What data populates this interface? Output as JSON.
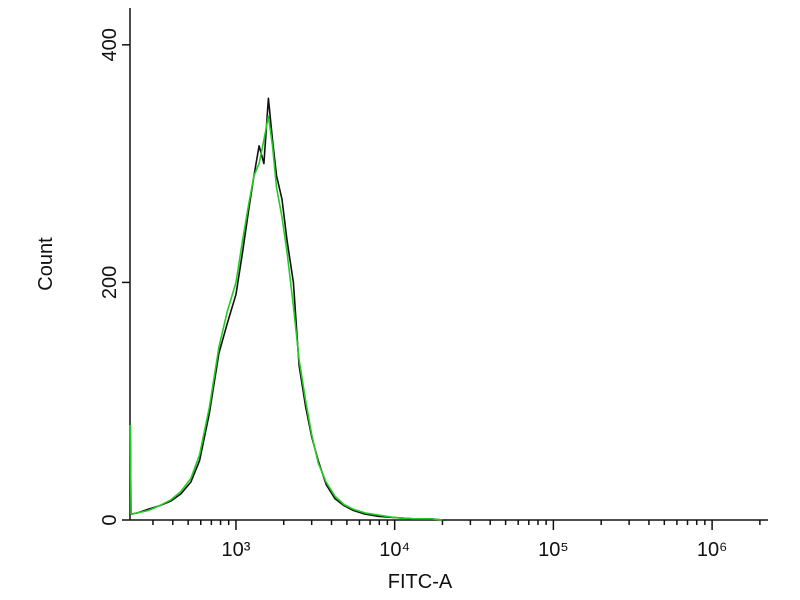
{
  "chart_data": {
    "type": "line",
    "x_label": "FITC-A",
    "y_label": "Count",
    "xscale": "log",
    "xlim": [
      215,
      2250000
    ],
    "ylim": [
      0,
      431
    ],
    "xticks": [
      {
        "value": 1000,
        "label": "10³"
      },
      {
        "value": 10000,
        "label": "10⁴"
      },
      {
        "value": 100000,
        "label": "10⁵"
      },
      {
        "value": 1000000,
        "label": "10⁶"
      }
    ],
    "xminorticks": [
      300,
      400,
      500,
      600,
      700,
      800,
      900,
      2000,
      3000,
      4000,
      5000,
      6000,
      7000,
      8000,
      9000,
      20000,
      30000,
      40000,
      50000,
      60000,
      70000,
      80000,
      90000,
      200000,
      300000,
      400000,
      500000,
      600000,
      700000,
      800000,
      900000,
      2000000
    ],
    "yticks": [
      0,
      200,
      400
    ],
    "x": [
      216,
      218,
      240,
      280,
      330,
      390,
      450,
      520,
      590,
      680,
      780,
      880,
      1000,
      1100,
      1200,
      1300,
      1400,
      1500,
      1600,
      1700,
      1800,
      1950,
      2100,
      2300,
      2500,
      2750,
      3000,
      3300,
      3700,
      4200,
      4800,
      5500,
      6500,
      8000,
      10000,
      13000,
      17000,
      20000
    ],
    "series": [
      {
        "color": "#111111",
        "values": [
          80,
          5,
          6,
          9,
          12,
          16,
          22,
          32,
          50,
          90,
          140,
          165,
          190,
          225,
          260,
          290,
          315,
          300,
          355,
          320,
          290,
          270,
          235,
          200,
          130,
          95,
          70,
          50,
          30,
          18,
          12,
          8,
          5,
          3,
          2,
          1,
          1,
          0
        ]
      },
      {
        "color": "#22cc22",
        "values": [
          80,
          5,
          6,
          8,
          12,
          17,
          24,
          35,
          55,
          95,
          145,
          175,
          200,
          235,
          265,
          290,
          300,
          320,
          340,
          315,
          280,
          255,
          225,
          180,
          135,
          100,
          72,
          48,
          32,
          20,
          13,
          9,
          6,
          4,
          2,
          1,
          1,
          0
        ]
      }
    ]
  }
}
